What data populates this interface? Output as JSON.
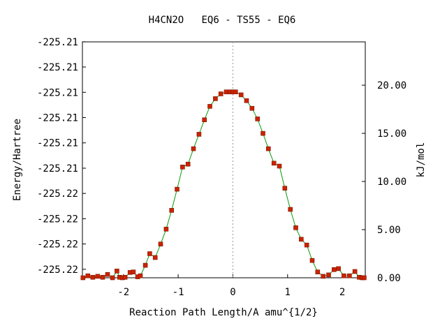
{
  "chart_data": {
    "type": "line",
    "title": "H4CN2O   EQ6 - TS55 - EQ6",
    "xlabel": "Reaction Path Length/A amu^{1/2}",
    "ylabel_left": "Energy/Hartree",
    "ylabel_right": "kJ/mol",
    "xlim": [
      -2.75,
      2.42
    ],
    "ylim_right": [
      0,
      24.5
    ],
    "x_ticks": [
      -2,
      -1,
      0,
      1,
      2
    ],
    "x_tick_labels": [
      "-2",
      "-1",
      "0",
      "1",
      "2"
    ],
    "left_tick_labels": [
      "-225.21",
      "-225.21",
      "-225.21",
      "-225.21",
      "-225.21",
      "-225.21",
      "-225.22",
      "-225.22",
      "-225.22",
      "-225.22"
    ],
    "left_tick_kjmol": [
      24.51,
      21.89,
      19.26,
      16.64,
      14.01,
      11.38,
      8.76,
      6.13,
      3.51,
      0.88
    ],
    "right_ticks": [
      0,
      5,
      10,
      15,
      20
    ],
    "right_tick_labels": [
      "0.00",
      "5.00",
      "10.00",
      "15.00",
      "20.00"
    ],
    "ts_marker_x": 0,
    "colors": {
      "line": "#0a9a0a",
      "marker": "#cc2200",
      "marker_edge": "#7a1a00",
      "ts_line": "#999999"
    },
    "series": [
      {
        "x": [
          -2.74,
          -2.65,
          -2.56,
          -2.47,
          -2.38,
          -2.29,
          -2.2,
          -2.12,
          -2.07,
          -2.02,
          -1.97,
          -1.88,
          -1.82,
          -1.74,
          -1.69,
          -1.6,
          -1.52,
          -1.42,
          -1.32,
          -1.22,
          -1.12,
          -1.02,
          -0.92,
          -0.82,
          -0.72,
          -0.62,
          -0.52,
          -0.42,
          -0.32,
          -0.22,
          -0.12,
          -0.05,
          0,
          0.05,
          0.15,
          0.25,
          0.35,
          0.45,
          0.55,
          0.65,
          0.75,
          0.85,
          0.95,
          1.05,
          1.15,
          1.25,
          1.35,
          1.45,
          1.55,
          1.65,
          1.75,
          1.85,
          1.93,
          2.03,
          2.13,
          2.23,
          2.31,
          2.36,
          2.4
        ],
        "y": [
          0.0,
          0.2,
          0.05,
          0.15,
          0.05,
          0.35,
          0.0,
          0.7,
          0.05,
          0.0,
          0.05,
          0.55,
          0.6,
          0.1,
          0.2,
          1.3,
          2.5,
          2.1,
          3.5,
          5.05,
          7.0,
          9.2,
          11.5,
          11.8,
          13.4,
          14.9,
          16.4,
          17.8,
          18.6,
          19.1,
          19.3,
          19.3,
          19.3,
          19.3,
          19.0,
          18.4,
          17.6,
          16.5,
          15.0,
          13.4,
          11.9,
          11.6,
          9.3,
          7.1,
          5.2,
          4.0,
          3.4,
          1.8,
          0.6,
          0.15,
          0.3,
          0.85,
          0.95,
          0.2,
          0.2,
          0.65,
          0.05,
          0.0,
          0.0
        ]
      }
    ]
  }
}
